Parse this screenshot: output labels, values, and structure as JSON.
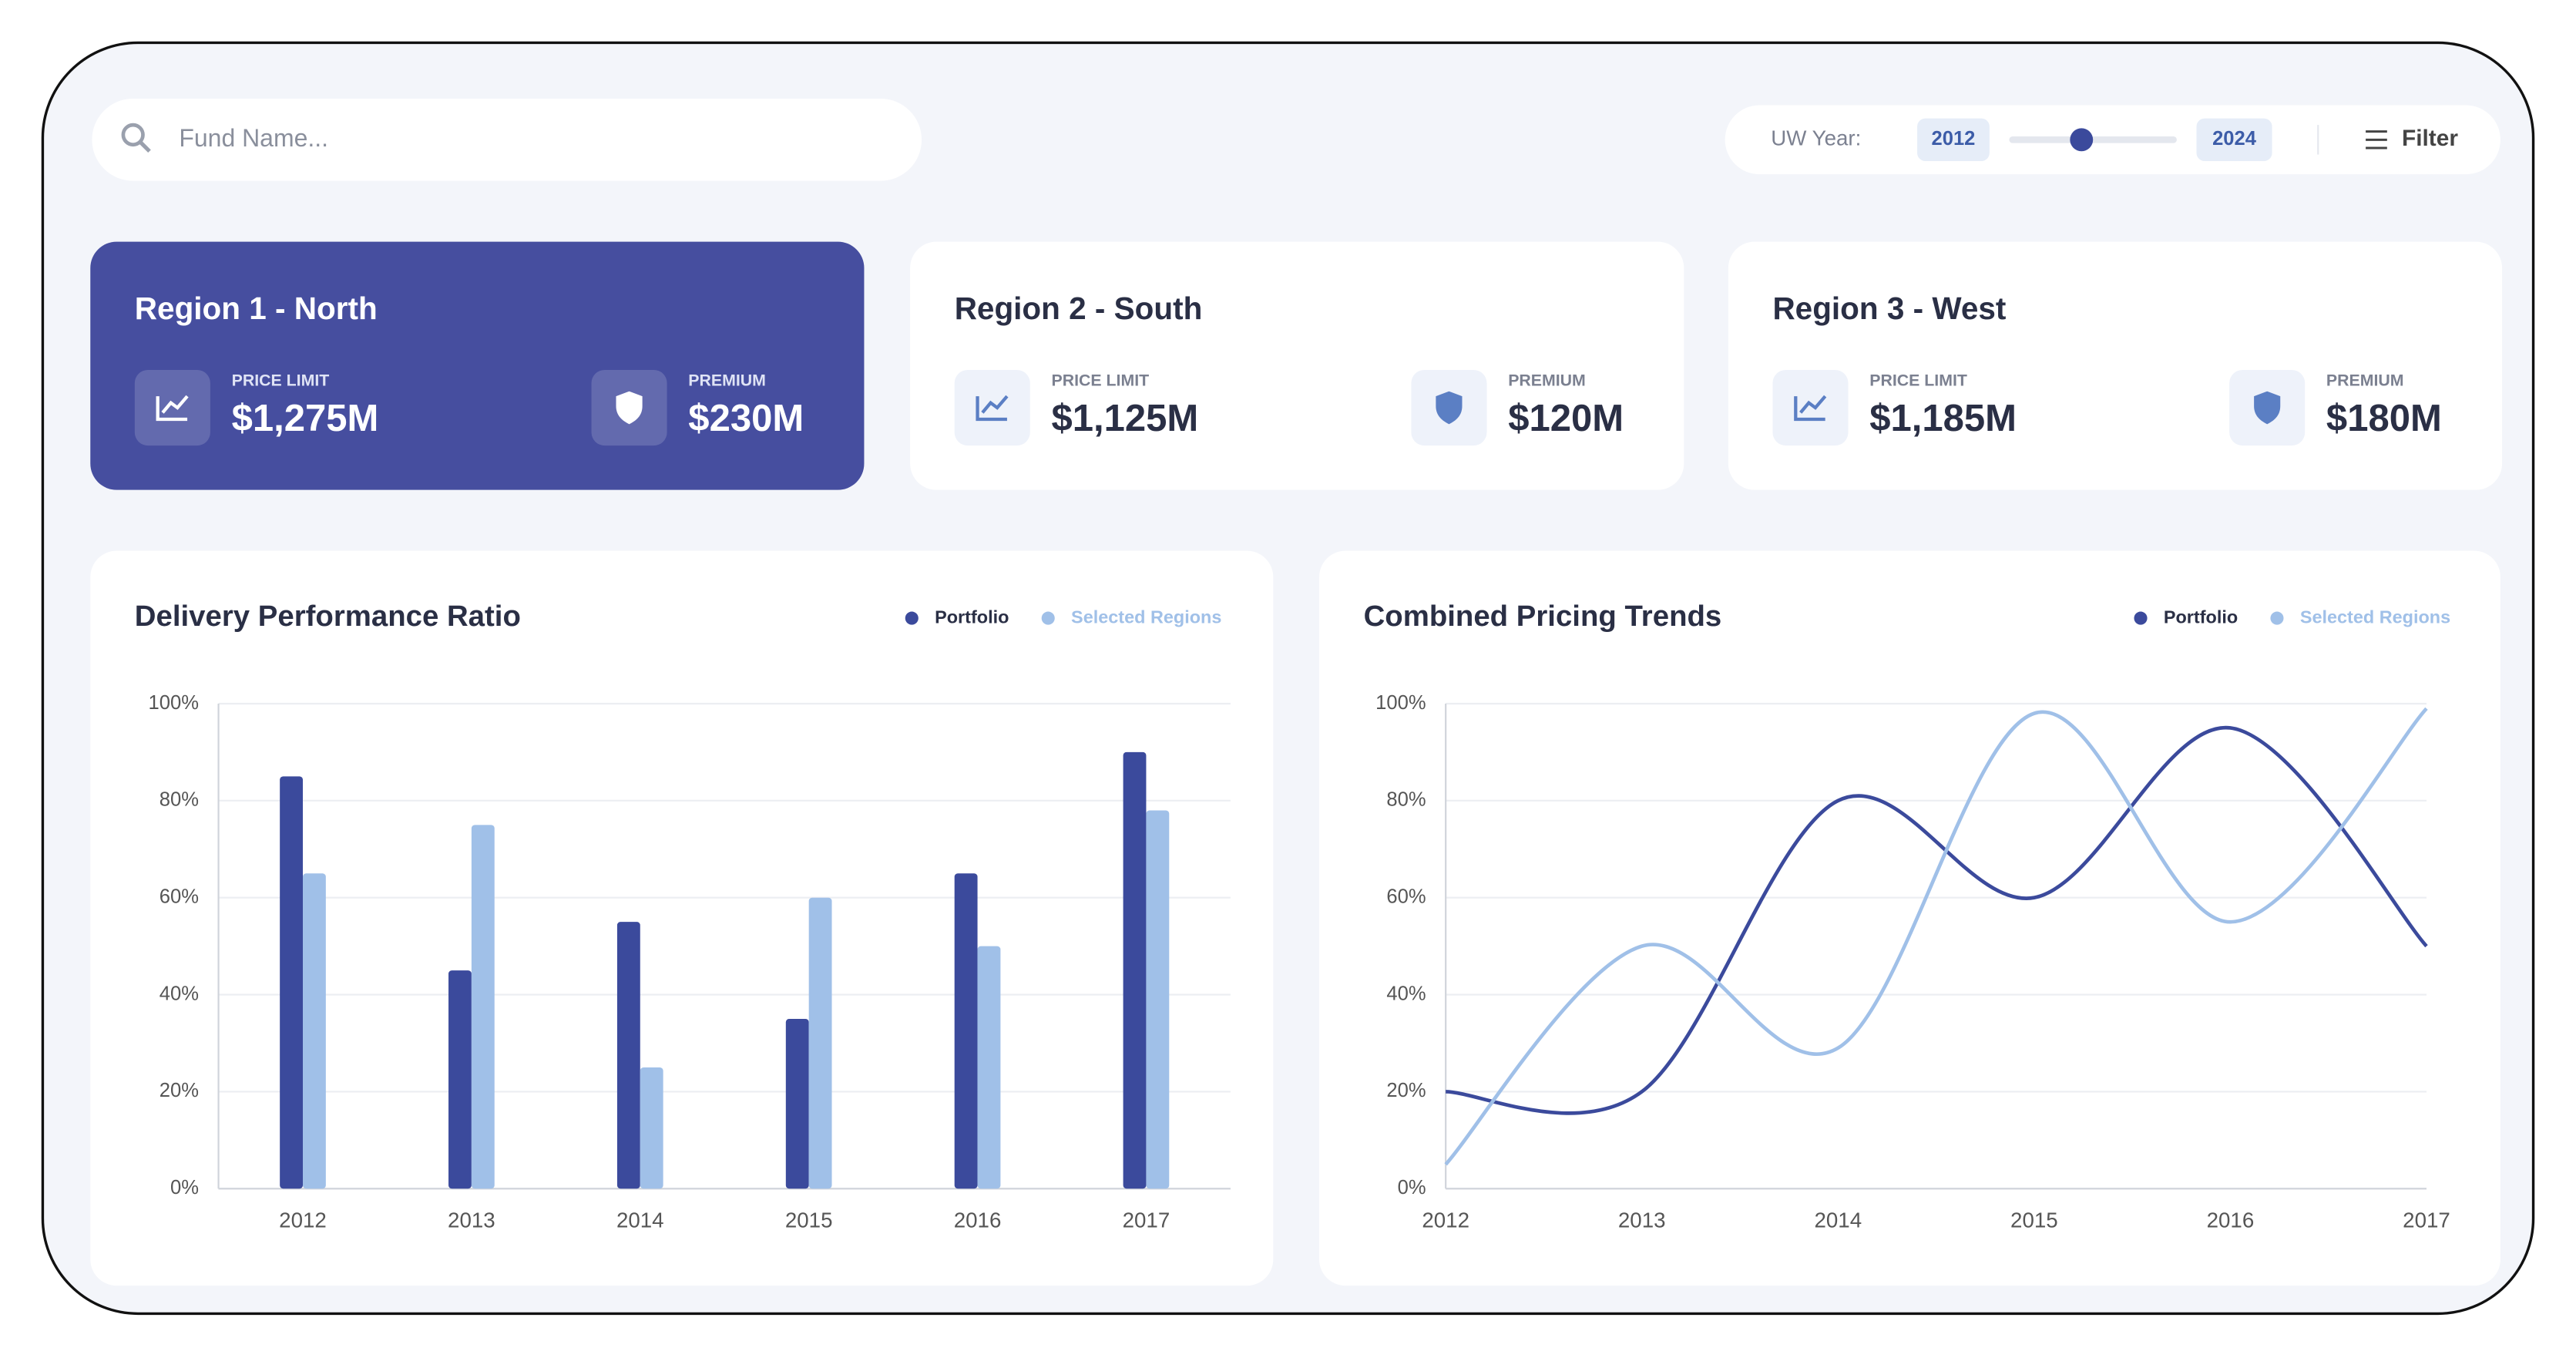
{
  "search": {
    "placeholder": "Fund Name..."
  },
  "filter": {
    "label": "UW Year:",
    "from": "2012",
    "to": "2024",
    "button": "Filter"
  },
  "cards": [
    {
      "title": "Region 1 - North",
      "price_label": "PRICE LIMIT",
      "price": "$1,275M",
      "premium_label": "PREMIUM",
      "premium": "$230M"
    },
    {
      "title": "Region 2 - South",
      "price_label": "PRICE LIMIT",
      "price": "$1,125M",
      "premium_label": "PREMIUM",
      "premium": "$120M"
    },
    {
      "title": "Region 3 - West",
      "price_label": "PRICE LIMIT",
      "price": "$1,185M",
      "premium_label": "PREMIUM",
      "premium": "$180M"
    }
  ],
  "chart_data": [
    {
      "type": "bar",
      "title": "Delivery Performance Ratio",
      "categories": [
        "2012",
        "2013",
        "2014",
        "2015",
        "2016",
        "2017"
      ],
      "series": [
        {
          "name": "Portfolio",
          "color": "#3b4a9c",
          "values": [
            85,
            45,
            55,
            35,
            65,
            90
          ]
        },
        {
          "name": "Selected Regions",
          "color": "#a0c0e8",
          "values": [
            65,
            75,
            25,
            60,
            50,
            78
          ]
        }
      ],
      "ylim": [
        0,
        100
      ],
      "yticks": [
        {
          "value": 0,
          "label": "0%"
        },
        {
          "value": 20,
          "label": "20%"
        },
        {
          "value": 40,
          "label": "40%"
        },
        {
          "value": 60,
          "label": "60%"
        },
        {
          "value": 80,
          "label": "80%"
        },
        {
          "value": 100,
          "label": "100%"
        }
      ],
      "grid": true
    },
    {
      "type": "line",
      "title": "Combined Pricing Trends",
      "categories": [
        "2012",
        "2013",
        "2014",
        "2015",
        "2016",
        "2017"
      ],
      "series": [
        {
          "name": "Portfolio",
          "color": "#3b4a9c",
          "values": [
            20,
            20,
            80,
            60,
            95,
            50
          ]
        },
        {
          "name": "Selected Regions",
          "color": "#a0c0e8",
          "values": [
            5,
            50,
            29,
            98,
            55,
            99
          ]
        }
      ],
      "ylim": [
        0,
        100
      ],
      "yticks": [
        {
          "value": 0,
          "label": "0%"
        },
        {
          "value": 20,
          "label": "20%"
        },
        {
          "value": 40,
          "label": "40%"
        },
        {
          "value": 60,
          "label": "60%"
        },
        {
          "value": 80,
          "label": "80%"
        },
        {
          "value": 100,
          "label": "100%"
        }
      ],
      "grid": true,
      "smooth": true
    }
  ]
}
